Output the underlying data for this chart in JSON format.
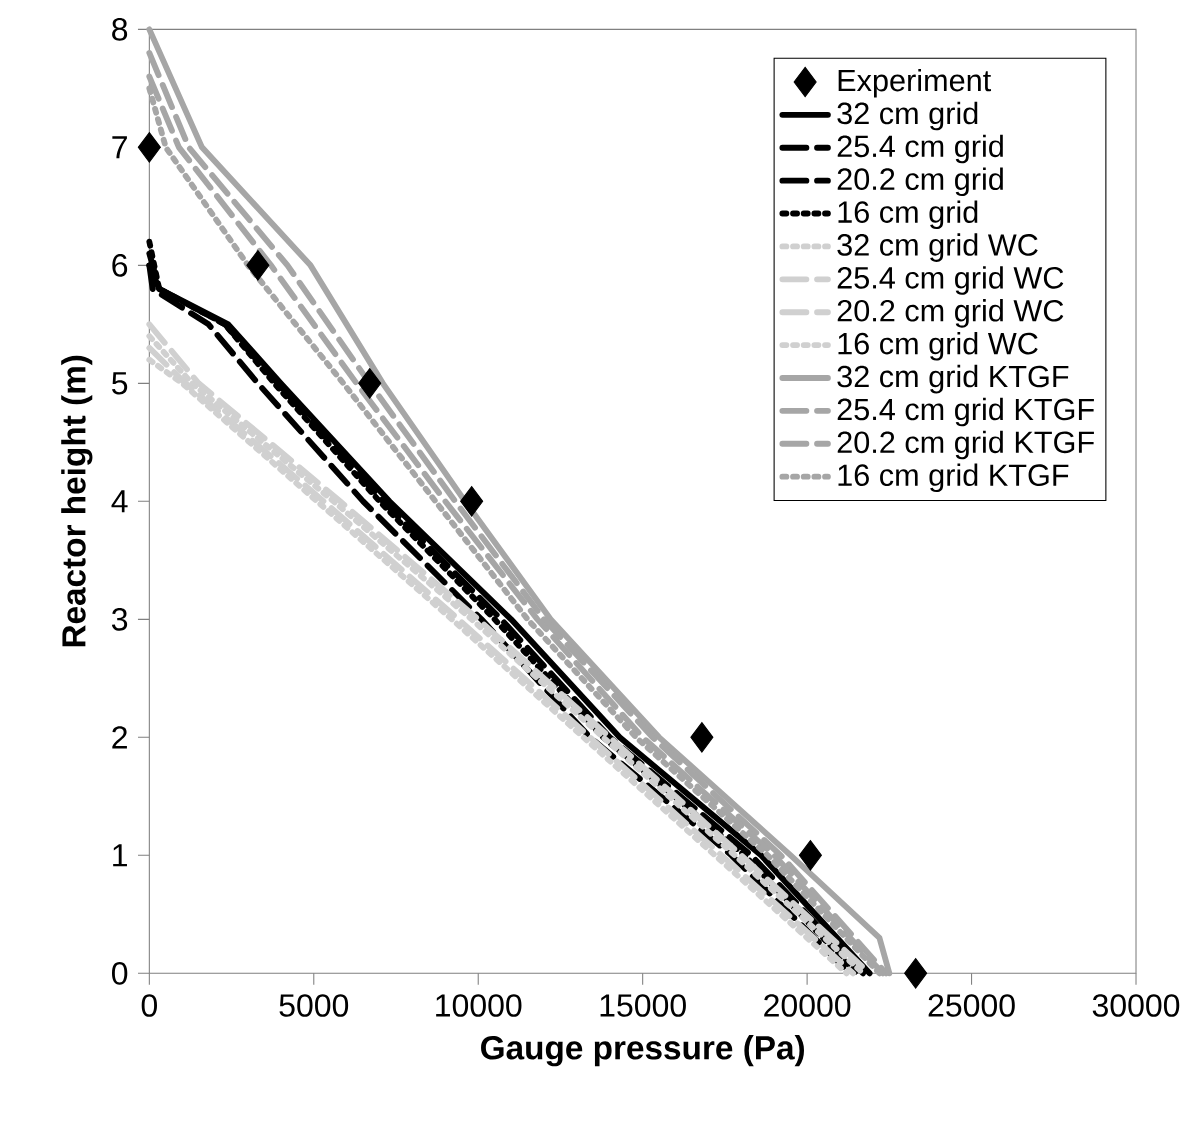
{
  "chart_data": {
    "type": "line",
    "xlabel": "Gauge pressure (Pa)",
    "ylabel": "Reactor height (m)",
    "xlim": [
      0,
      30000
    ],
    "ylim": [
      0,
      8
    ],
    "xticks": [
      0,
      5000,
      10000,
      15000,
      20000,
      25000,
      30000
    ],
    "yticks": [
      0,
      1,
      2,
      3,
      4,
      5,
      6,
      7,
      8
    ],
    "legend": "top right",
    "marker": "none",
    "series": [
      {
        "name": "Experiment",
        "type": "scatter",
        "marker": "diamond",
        "color": "#000000",
        "x": [
          0,
          3300,
          6700,
          9800,
          16800,
          20100,
          23300
        ],
        "values": [
          7,
          6,
          5,
          4,
          2,
          1,
          0
        ]
      },
      {
        "name": "32 cm grid",
        "color": "#000000",
        "line_style": "solid",
        "x": [
          0,
          300,
          2400,
          4000,
          7300,
          11000,
          14300,
          18600,
          21900
        ],
        "values": [
          6,
          5.8,
          5.5,
          5,
          4,
          3,
          2,
          1,
          0
        ]
      },
      {
        "name": "25.4 cm grid",
        "color": "#000000",
        "line_style": "dashed",
        "x": [
          0,
          300,
          2300,
          3900,
          7100,
          10700,
          14000,
          18300,
          21700
        ],
        "values": [
          6.1,
          5.8,
          5.5,
          5,
          4,
          3,
          2,
          1,
          0
        ]
      },
      {
        "name": "20.2 cm grid",
        "color": "#000000",
        "line_style": "dashed",
        "x": [
          0,
          100,
          1800,
          3300,
          6500,
          10100,
          13400,
          17700,
          21300
        ],
        "values": [
          6.0,
          5.8,
          5.5,
          5,
          4,
          3,
          2,
          1,
          0
        ]
      },
      {
        "name": "16 cm grid",
        "color": "#000000",
        "line_style": "dotted",
        "x": [
          0,
          300,
          2300,
          3800,
          7000,
          10500,
          13800,
          18100,
          21500
        ],
        "values": [
          6.2,
          5.8,
          5.5,
          5,
          4,
          3,
          2,
          1,
          0
        ]
      },
      {
        "name": "32 cm grid WC",
        "color": "#d0d0d0",
        "line_style": "dotted",
        "x": [
          0,
          1300,
          5600,
          9800,
          13800,
          17800,
          21700
        ],
        "values": [
          5.4,
          5,
          4,
          3,
          2,
          1,
          0
        ]
      },
      {
        "name": "25.4 cm grid WC",
        "color": "#d0d0d0",
        "line_style": "dashed",
        "x": [
          0,
          1500,
          5800,
          10000,
          14000,
          18000,
          21900
        ],
        "values": [
          5.5,
          5,
          4,
          3,
          2,
          1,
          0
        ]
      },
      {
        "name": "20.2 cm grid WC",
        "color": "#d0d0d0",
        "line_style": "dashed",
        "x": [
          0,
          1100,
          5300,
          9400,
          13400,
          17400,
          21400
        ],
        "values": [
          5.3,
          5,
          4,
          3,
          2,
          1,
          0
        ]
      },
      {
        "name": "16 cm grid WC",
        "color": "#d0d0d0",
        "line_style": "dotted",
        "x": [
          0,
          1000,
          5100,
          9200,
          13200,
          17200,
          21200
        ],
        "values": [
          5.2,
          5,
          4,
          3,
          2,
          1,
          0
        ]
      },
      {
        "name": "32 cm grid KTGF",
        "color": "#a6a6a6",
        "line_style": "solid",
        "x": [
          0,
          1600,
          4900,
          7100,
          9600,
          12200,
          15500,
          19500,
          22200,
          22500
        ],
        "values": [
          8,
          7,
          6,
          5,
          4,
          3,
          2,
          1,
          0.3,
          0
        ]
      },
      {
        "name": "25.4 cm grid KTGF",
        "color": "#a6a6a6",
        "line_style": "dashed",
        "x": [
          0,
          1200,
          4200,
          6700,
          9300,
          12000,
          15300,
          19200,
          22400
        ],
        "values": [
          7.8,
          7,
          6,
          5,
          4,
          3,
          2,
          1,
          0
        ]
      },
      {
        "name": "20.2 cm grid KTGF",
        "color": "#a6a6a6",
        "line_style": "dashed",
        "x": [
          0,
          900,
          3700,
          6300,
          9000,
          11800,
          15000,
          19000,
          22300
        ],
        "values": [
          7.6,
          7,
          6,
          5,
          4,
          3,
          2,
          1,
          0
        ]
      },
      {
        "name": "16 cm grid KTGF",
        "color": "#a6a6a6",
        "line_style": "dotted",
        "x": [
          0,
          500,
          3000,
          5900,
          8700,
          11500,
          14800,
          18800,
          22200
        ],
        "values": [
          7.5,
          7,
          6,
          5,
          4,
          3,
          2,
          1,
          0
        ]
      }
    ]
  }
}
